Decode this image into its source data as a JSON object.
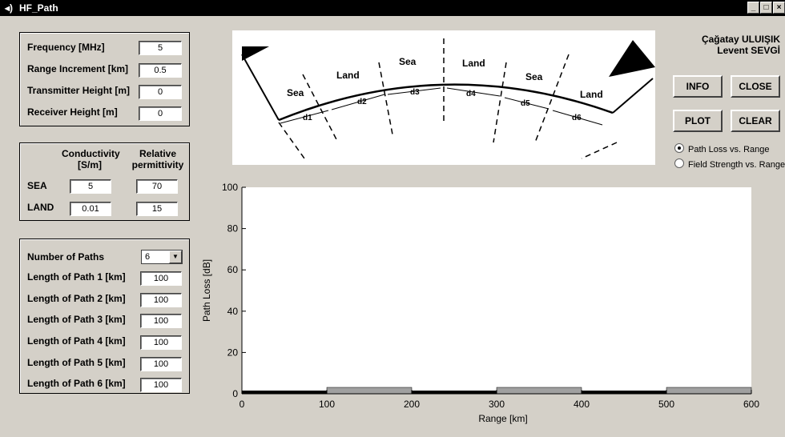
{
  "window": {
    "title": "HF_Path",
    "minimize": "_",
    "maximize": "□",
    "close": "×"
  },
  "params": {
    "frequency_label": "Frequency [MHz]",
    "frequency": "5",
    "range_inc_label": "Range Increment [km]",
    "range_inc": "0.5",
    "tx_height_label": "Transmitter Height [m]",
    "tx_height": "0",
    "rx_height_label": "Receiver Height [m]",
    "rx_height": "0"
  },
  "ground": {
    "conductivity_header": "Conductivity\n[S/m]",
    "permittivity_header": "Relative\npermittivity",
    "cond_h1": "Conductivity",
    "cond_h2": "[S/m]",
    "perm_h1": "Relative",
    "perm_h2": "permittivity",
    "sea_label": "SEA",
    "sea_cond": "5",
    "sea_perm": "70",
    "land_label": "LAND",
    "land_cond": "0.01",
    "land_perm": "15"
  },
  "paths": {
    "num_label": "Number of Paths",
    "num_value": "6",
    "items": [
      {
        "label": "Length of Path 1 [km]",
        "value": "100"
      },
      {
        "label": "Length of Path 2 [km]",
        "value": "100"
      },
      {
        "label": "Length of Path 3 [km]",
        "value": "100"
      },
      {
        "label": "Length of Path 4 [km]",
        "value": "100"
      },
      {
        "label": "Length of Path 5 [km]",
        "value": "100"
      },
      {
        "label": "Length of Path 6 [km]",
        "value": "100"
      }
    ]
  },
  "authors": {
    "line1": "Çağatay ULUIŞIK",
    "line2": "Levent SEVGİ"
  },
  "buttons": {
    "info": "INFO",
    "close": "CLOSE",
    "plot": "PLOT",
    "clear": "CLEAR"
  },
  "radios": {
    "option1": "Path Loss vs. Range",
    "option2": "Field Strength vs. Range",
    "selected": "option1"
  },
  "diagram": {
    "segments": [
      "Sea",
      "Land",
      "Sea",
      "Land",
      "Sea",
      "Land"
    ],
    "distances": [
      "d1",
      "d2",
      "d3",
      "d4",
      "d5",
      "d6"
    ]
  },
  "chart_data": {
    "type": "line",
    "xlabel": "Range [km]",
    "ylabel": "Path Loss [dB]",
    "xlim": [
      0,
      600
    ],
    "ylim": [
      0,
      100
    ],
    "xticks": [
      "0",
      "100",
      "200",
      "300",
      "400",
      "500",
      "600"
    ],
    "yticks": [
      "0",
      "20",
      "40",
      "60",
      "80",
      "100"
    ],
    "grid": false,
    "segments": [
      {
        "from": 0,
        "to": 100,
        "type": "SEA",
        "color": "#000000"
      },
      {
        "from": 100,
        "to": 200,
        "type": "LAND",
        "color": "#a0a0a0"
      },
      {
        "from": 200,
        "to": 300,
        "type": "SEA",
        "color": "#000000"
      },
      {
        "from": 300,
        "to": 400,
        "type": "LAND",
        "color": "#a0a0a0"
      },
      {
        "from": 400,
        "to": 500,
        "type": "SEA",
        "color": "#000000"
      },
      {
        "from": 500,
        "to": 600,
        "type": "LAND",
        "color": "#a0a0a0"
      }
    ]
  }
}
